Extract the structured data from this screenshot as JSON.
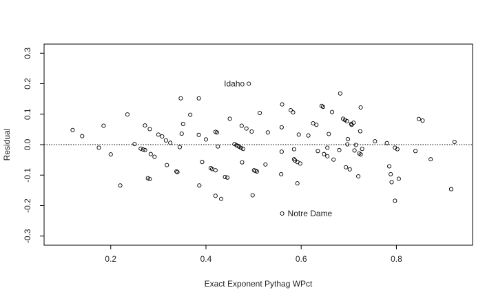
{
  "chart_data": {
    "type": "scatter",
    "title": "",
    "xlabel": "Exact Exponent Pythag WPct",
    "ylabel": "Residual",
    "xlim": [
      0.06,
      0.96
    ],
    "ylim": [
      -0.33,
      0.33
    ],
    "xticks": [
      0.2,
      0.4,
      0.6,
      0.8
    ],
    "yticks": [
      -0.3,
      -0.2,
      -0.1,
      0.0,
      0.1,
      0.2,
      0.3
    ],
    "xtick_labels": [
      "0.2",
      "0.4",
      "0.6",
      "0.8"
    ],
    "ytick_labels": [
      "-0.3",
      "-0.2",
      "-0.1",
      "0.0",
      "0.1",
      "0.2",
      "0.3"
    ],
    "reference_line": {
      "y": 0,
      "style": "dotted"
    },
    "grid": false,
    "annotations": [
      {
        "text": "Idaho",
        "x": 0.49,
        "y": 0.2,
        "side": "left"
      },
      {
        "text": "Notre Dame",
        "x": 0.56,
        "y": -0.226,
        "side": "right"
      }
    ],
    "points": [
      [
        0.12,
        0.048
      ],
      [
        0.14,
        0.028
      ],
      [
        0.175,
        -0.01
      ],
      [
        0.185,
        0.062
      ],
      [
        0.2,
        -0.032
      ],
      [
        0.22,
        -0.134
      ],
      [
        0.235,
        0.099
      ],
      [
        0.25,
        0.002
      ],
      [
        0.263,
        -0.013
      ],
      [
        0.268,
        -0.016
      ],
      [
        0.272,
        -0.018
      ],
      [
        0.272,
        0.063
      ],
      [
        0.278,
        -0.11
      ],
      [
        0.282,
        -0.113
      ],
      [
        0.282,
        0.051
      ],
      [
        0.284,
        -0.031
      ],
      [
        0.292,
        -0.04
      ],
      [
        0.3,
        0.033
      ],
      [
        0.308,
        0.027
      ],
      [
        0.316,
        0.014
      ],
      [
        0.318,
        -0.067
      ],
      [
        0.325,
        0.006
      ],
      [
        0.338,
        -0.088
      ],
      [
        0.34,
        -0.09
      ],
      [
        0.345,
        -0.008
      ],
      [
        0.347,
        0.152
      ],
      [
        0.349,
        0.036
      ],
      [
        0.352,
        0.068
      ],
      [
        0.367,
        0.098
      ],
      [
        0.385,
        0.152
      ],
      [
        0.385,
        0.032
      ],
      [
        0.386,
        -0.134
      ],
      [
        0.392,
        -0.057
      ],
      [
        0.4,
        0.017
      ],
      [
        0.41,
        -0.077
      ],
      [
        0.413,
        -0.08
      ],
      [
        0.42,
        -0.084
      ],
      [
        0.42,
        -0.168
      ],
      [
        0.42,
        0.042
      ],
      [
        0.423,
        0.04
      ],
      [
        0.425,
        -0.006
      ],
      [
        0.432,
        -0.178
      ],
      [
        0.44,
        -0.106
      ],
      [
        0.445,
        -0.108
      ],
      [
        0.45,
        0.085
      ],
      [
        0.46,
        0.002
      ],
      [
        0.464,
        -0.002
      ],
      [
        0.467,
        -0.004
      ],
      [
        0.47,
        -0.007
      ],
      [
        0.474,
        -0.011
      ],
      [
        0.478,
        -0.014
      ],
      [
        0.475,
        0.062
      ],
      [
        0.476,
        -0.058
      ],
      [
        0.485,
        0.053
      ],
      [
        0.49,
        0.2
      ],
      [
        0.496,
        0.043
      ],
      [
        0.498,
        -0.166
      ],
      [
        0.501,
        -0.084
      ],
      [
        0.504,
        -0.086
      ],
      [
        0.507,
        -0.088
      ],
      [
        0.513,
        0.104
      ],
      [
        0.525,
        -0.065
      ],
      [
        0.53,
        0.04
      ],
      [
        0.558,
        -0.097
      ],
      [
        0.559,
        0.057
      ],
      [
        0.559,
        -0.023
      ],
      [
        0.56,
        0.132
      ],
      [
        0.56,
        -0.226
      ],
      [
        0.578,
        0.113
      ],
      [
        0.583,
        0.106
      ],
      [
        0.585,
        -0.015
      ],
      [
        0.585,
        -0.048
      ],
      [
        0.587,
        -0.052
      ],
      [
        0.592,
        -0.057
      ],
      [
        0.592,
        -0.127
      ],
      [
        0.595,
        0.033
      ],
      [
        0.598,
        -0.062
      ],
      [
        0.615,
        0.03
      ],
      [
        0.625,
        0.07
      ],
      [
        0.632,
        0.065
      ],
      [
        0.635,
        -0.021
      ],
      [
        0.643,
        0.127
      ],
      [
        0.646,
        0.124
      ],
      [
        0.648,
        -0.031
      ],
      [
        0.655,
        -0.01
      ],
      [
        0.655,
        -0.038
      ],
      [
        0.658,
        0.035
      ],
      [
        0.665,
        0.107
      ],
      [
        0.668,
        -0.049
      ],
      [
        0.68,
        -0.018
      ],
      [
        0.682,
        0.168
      ],
      [
        0.688,
        0.085
      ],
      [
        0.692,
        0.081
      ],
      [
        0.694,
        -0.074
      ],
      [
        0.696,
        0.077
      ],
      [
        0.697,
        0.001
      ],
      [
        0.698,
        0.018
      ],
      [
        0.702,
        -0.081
      ],
      [
        0.705,
        0.068
      ],
      [
        0.706,
        0.065
      ],
      [
        0.71,
        0.072
      ],
      [
        0.712,
        -0.019
      ],
      [
        0.715,
        -0.001
      ],
      [
        0.72,
        -0.104
      ],
      [
        0.722,
        -0.029
      ],
      [
        0.724,
        0.044
      ],
      [
        0.725,
        0.122
      ],
      [
        0.725,
        -0.032
      ],
      [
        0.728,
        -0.014
      ],
      [
        0.755,
        0.011
      ],
      [
        0.78,
        0.005
      ],
      [
        0.785,
        -0.071
      ],
      [
        0.788,
        -0.097
      ],
      [
        0.79,
        -0.123
      ],
      [
        0.797,
        -0.184
      ],
      [
        0.797,
        -0.01
      ],
      [
        0.802,
        -0.015
      ],
      [
        0.805,
        -0.112
      ],
      [
        0.84,
        -0.021
      ],
      [
        0.847,
        0.084
      ],
      [
        0.855,
        0.079
      ],
      [
        0.872,
        -0.048
      ],
      [
        0.915,
        -0.146
      ],
      [
        0.922,
        0.009
      ]
    ]
  }
}
